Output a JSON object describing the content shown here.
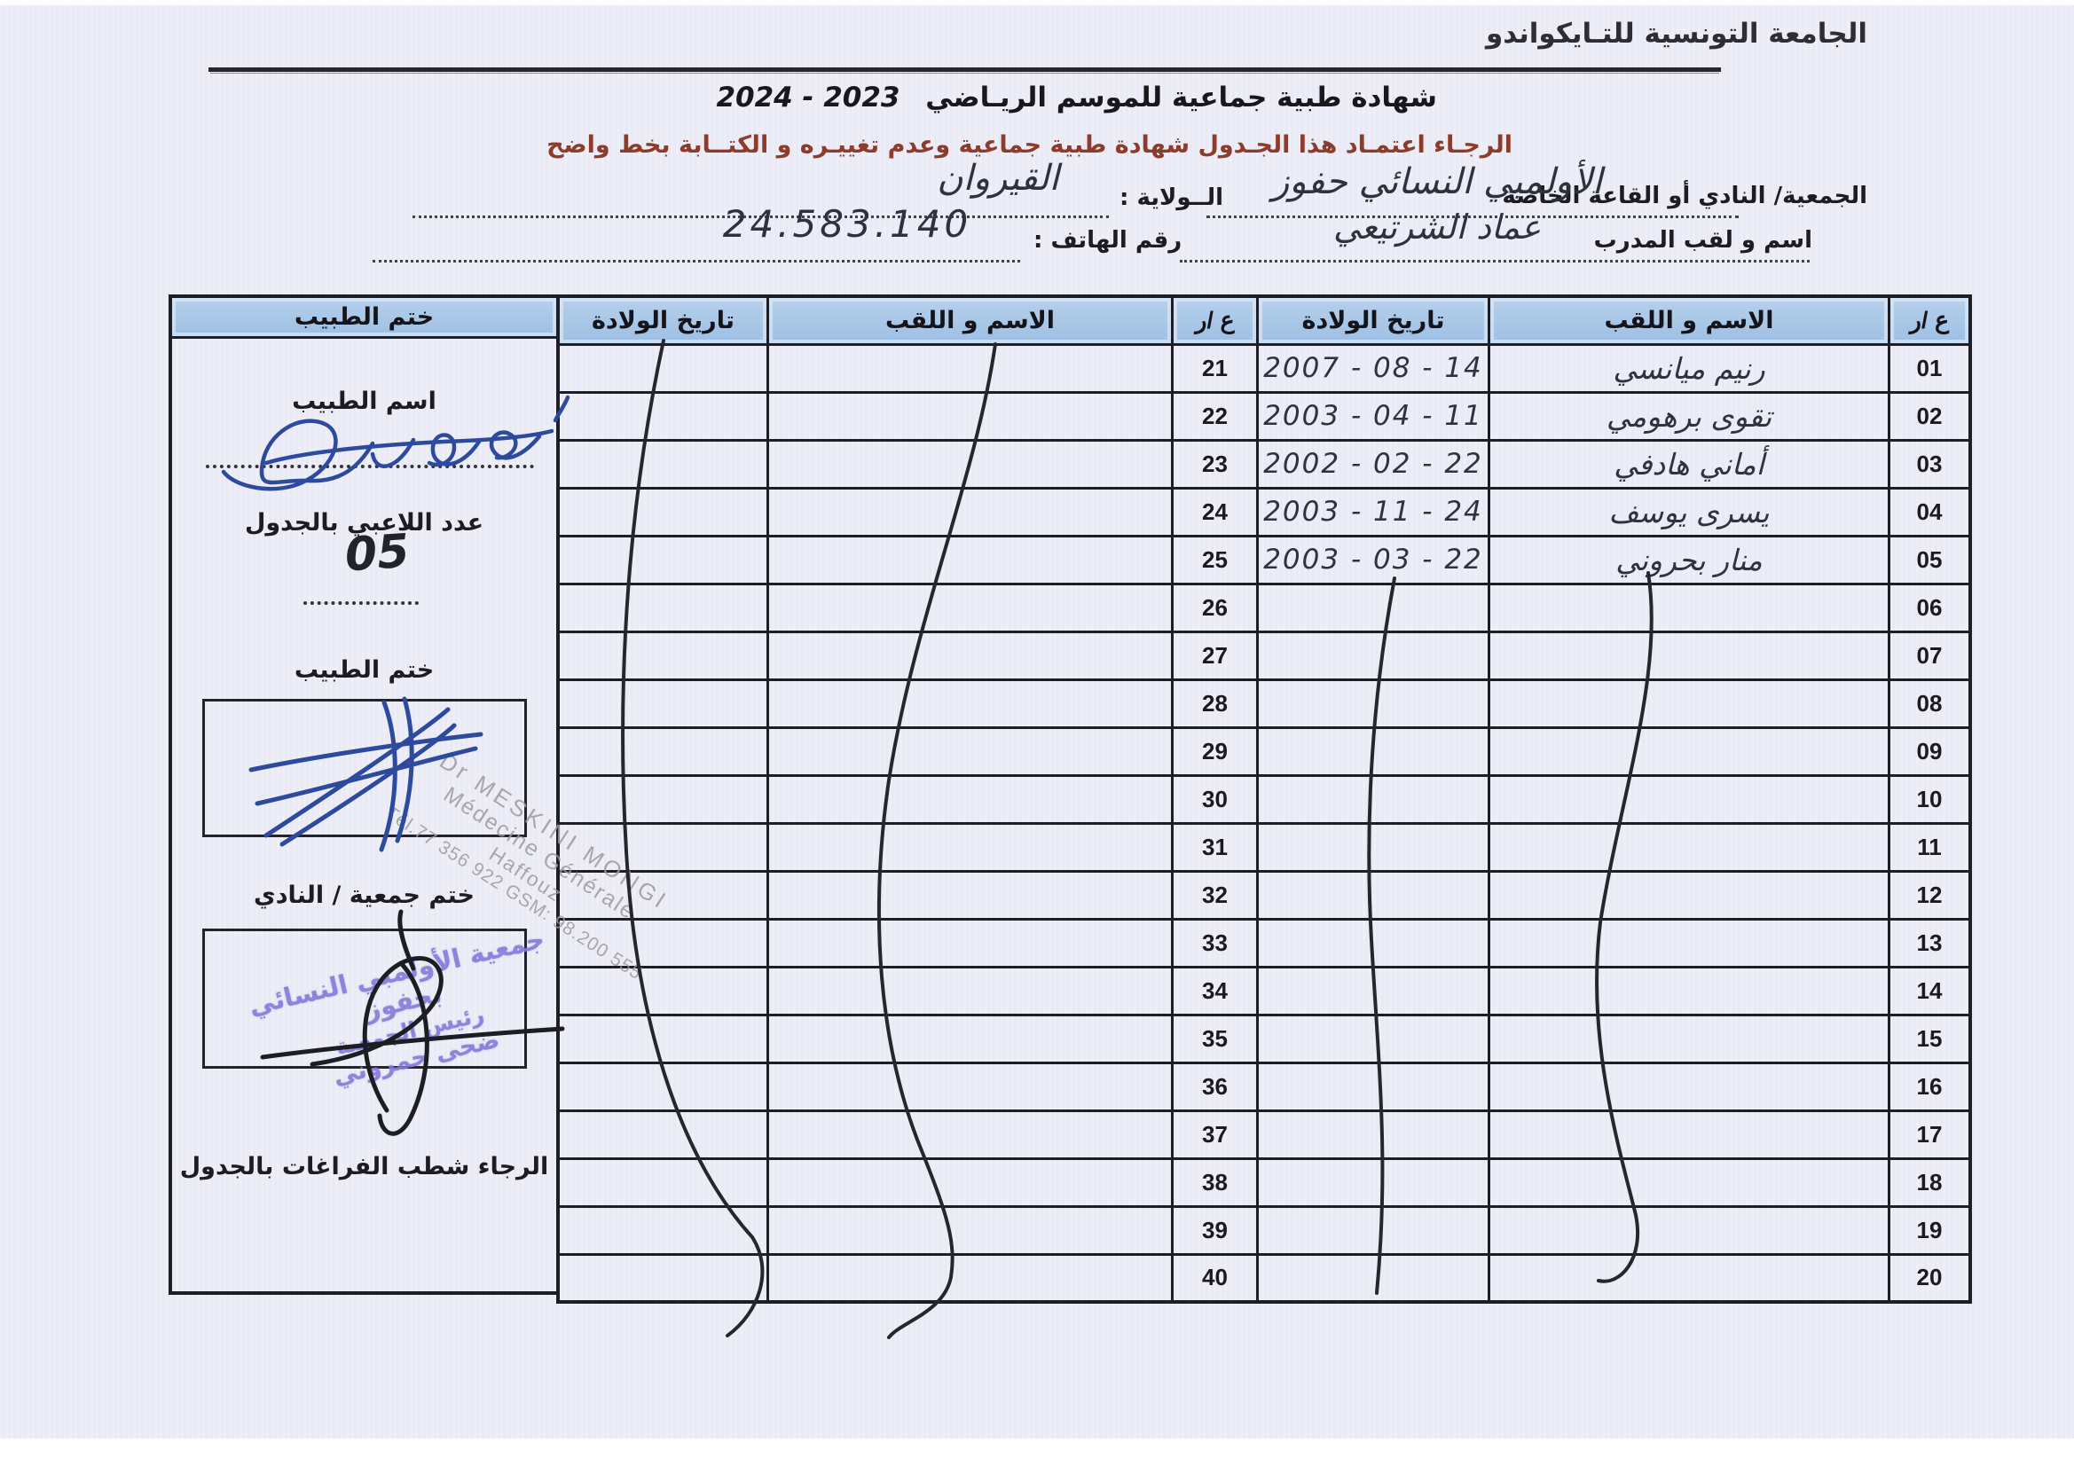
{
  "page": {
    "federation_title": "الجامعة التونسية للتـايكواندو"
  },
  "titles": {
    "season_ar": "شهادة طبية جماعية  للموسم الريـاضي",
    "season_years": "2023 - 2024",
    "warning": "الرجـاء اعتمـاد هذا الجـدول  شهادة طبية جماعية وعدم تغييـره و الكتــابة بخط واضح"
  },
  "form": {
    "club_label": "الجمعية/ النادي أو القاعة الخاصة",
    "club_value": "الأولمبي النسائي حفوز",
    "state_label": "الــولاية :",
    "state_value": "القيروان",
    "coach_label": "اسم و لقب المدرب",
    "coach_value": "عماد الشرتيعي",
    "phone_label": "رقم الهاتف :",
    "phone_value": "24.583.140"
  },
  "table": {
    "headers": {
      "num": "ع /ر",
      "name": "الاسم و اللقب",
      "dob": "تاريخ الولادة",
      "stamp": "ختم الطبيب"
    },
    "rows": [
      {
        "n1": "01",
        "name": "رنيم ميانسي",
        "dob": "2007 - 08 - 14",
        "n2": "21",
        "name2": "",
        "dob2": ""
      },
      {
        "n1": "02",
        "name": "تقوى برهومي",
        "dob": "2003 - 04 - 11",
        "n2": "22",
        "name2": "",
        "dob2": ""
      },
      {
        "n1": "03",
        "name": "أماني هادفي",
        "dob": "2002 - 02 - 22",
        "n2": "23",
        "name2": "",
        "dob2": ""
      },
      {
        "n1": "04",
        "name": "يسرى يوسف",
        "dob": "2003 - 11 - 24",
        "n2": "24",
        "name2": "",
        "dob2": ""
      },
      {
        "n1": "05",
        "name": "منار بحروني",
        "dob": "2003 - 03 - 22",
        "n2": "25",
        "name2": "",
        "dob2": ""
      },
      {
        "n1": "06",
        "name": "",
        "dob": "",
        "n2": "26",
        "name2": "",
        "dob2": ""
      },
      {
        "n1": "07",
        "name": "",
        "dob": "",
        "n2": "27",
        "name2": "",
        "dob2": ""
      },
      {
        "n1": "08",
        "name": "",
        "dob": "",
        "n2": "28",
        "name2": "",
        "dob2": ""
      },
      {
        "n1": "09",
        "name": "",
        "dob": "",
        "n2": "29",
        "name2": "",
        "dob2": ""
      },
      {
        "n1": "10",
        "name": "",
        "dob": "",
        "n2": "30",
        "name2": "",
        "dob2": ""
      },
      {
        "n1": "11",
        "name": "",
        "dob": "",
        "n2": "31",
        "name2": "",
        "dob2": ""
      },
      {
        "n1": "12",
        "name": "",
        "dob": "",
        "n2": "32",
        "name2": "",
        "dob2": ""
      },
      {
        "n1": "13",
        "name": "",
        "dob": "",
        "n2": "33",
        "name2": "",
        "dob2": ""
      },
      {
        "n1": "14",
        "name": "",
        "dob": "",
        "n2": "34",
        "name2": "",
        "dob2": ""
      },
      {
        "n1": "15",
        "name": "",
        "dob": "",
        "n2": "35",
        "name2": "",
        "dob2": ""
      },
      {
        "n1": "16",
        "name": "",
        "dob": "",
        "n2": "36",
        "name2": "",
        "dob2": ""
      },
      {
        "n1": "17",
        "name": "",
        "dob": "",
        "n2": "37",
        "name2": "",
        "dob2": ""
      },
      {
        "n1": "18",
        "name": "",
        "dob": "",
        "n2": "38",
        "name2": "",
        "dob2": ""
      },
      {
        "n1": "19",
        "name": "",
        "dob": "",
        "n2": "39",
        "name2": "",
        "dob2": ""
      },
      {
        "n1": "20",
        "name": "",
        "dob": "",
        "n2": "40",
        "name2": "",
        "dob2": ""
      }
    ]
  },
  "side": {
    "doctor_name_label": "اسم الطبيب",
    "players_count_label": "عدد اللاعبي بالجدول",
    "players_count_value": "05",
    "doctor_stamp_label": "ختم الطبيب",
    "doctor_stamp_lines": {
      "l1": "Dr MESKINI MONGI",
      "l2": "Médecine Générale",
      "l3": "Haffouz",
      "l4": "Tél.77 356 922  GSM: 98.200 555"
    },
    "club_stamp_label": "ختم جمعية / النادي",
    "club_stamp_lines": {
      "l1": "جمعية الأولمبي النسائي بحفوز",
      "l2": "رئيس الجمعية",
      "l3": "ضحى حمروني"
    },
    "note": "الرجاء شطب  الفراغات بالجدول"
  },
  "colors": {
    "paper": "#ecedf7",
    "header_blue": "#a6c4e7",
    "warning_red": "#8d3c2c",
    "pen_blue": "#2e4a9e",
    "stamp_gray": "#9a9aa0",
    "stamp_purple": "#8678dc",
    "ink_black": "#26262e"
  }
}
